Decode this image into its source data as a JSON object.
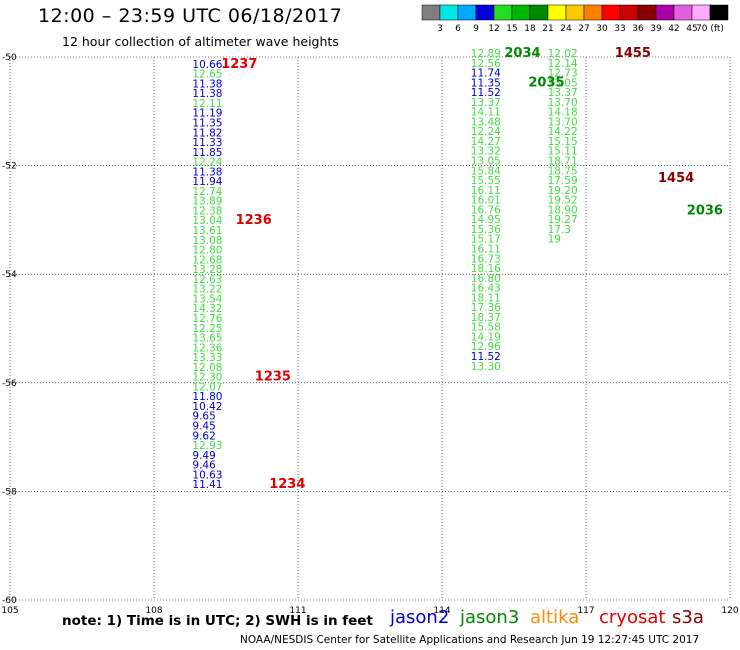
{
  "header": {
    "title": "12:00 – 23:59 UTC 06/18/2017",
    "subtitle": "12 hour collection of altimeter wave heights"
  },
  "colorbar": {
    "colors": [
      "#7f7f7f",
      "#00e6e6",
      "#00a8ff",
      "#0000dd",
      "#22dd22",
      "#00b800",
      "#008800",
      "#ffff00",
      "#ffc800",
      "#ff8000",
      "#ff0000",
      "#cc0000",
      "#880000",
      "#aa00aa",
      "#e060e0",
      "#ffaaff",
      "#000000"
    ],
    "labels": [
      "3",
      "6",
      "9",
      "12",
      "15",
      "18",
      "21",
      "24",
      "27",
      "30",
      "33",
      "36",
      "39",
      "42",
      "45",
      "70 (ft)"
    ]
  },
  "footer": {
    "note": "note:  1) Time is in UTC;  2) SWH is in feet",
    "satellites": [
      {
        "name": "jason2",
        "color": "#0000cc"
      },
      {
        "name": "jason3",
        "color": "#008800"
      },
      {
        "name": "altika",
        "color": "#ff8c00"
      },
      {
        "name": "cryosat",
        "color": "#dd0000"
      },
      {
        "name": "s3a",
        "color": "#880000"
      }
    ],
    "credit": "NOAA/NESDIS Center for Satellite Applications and Research    Jun 19 12:27:45 UTC 2017"
  },
  "chart_data": {
    "type": "scatter",
    "xlim": [
      105,
      120
    ],
    "ylim": [
      -60,
      -50
    ],
    "x_ticks": [
      105,
      108,
      111,
      114,
      117,
      120
    ],
    "y_ticks": [
      -50,
      -52,
      -54,
      -56,
      -58,
      -60
    ],
    "grid": true,
    "series": [
      {
        "name": "track_left",
        "points": [
          {
            "x": 108.8,
            "y": -50.2,
            "v": "10.66",
            "c": "#0000cc"
          },
          {
            "x": 108.8,
            "y": -50.38,
            "v": "12.65",
            "c": "#44dd44"
          },
          {
            "x": 108.8,
            "y": -50.56,
            "v": "11.38",
            "c": "#0000cc"
          },
          {
            "x": 108.8,
            "y": -50.74,
            "v": "11.38",
            "c": "#0000cc"
          },
          {
            "x": 108.8,
            "y": -50.92,
            "v": "12.11",
            "c": "#44dd44"
          },
          {
            "x": 108.8,
            "y": -51.1,
            "v": "11.19",
            "c": "#0000cc"
          },
          {
            "x": 108.8,
            "y": -51.28,
            "v": "11.35",
            "c": "#0000cc"
          },
          {
            "x": 108.8,
            "y": -51.46,
            "v": "11.82",
            "c": "#0000cc"
          },
          {
            "x": 108.8,
            "y": -51.64,
            "v": "11.33",
            "c": "#0000cc"
          },
          {
            "x": 108.8,
            "y": -51.82,
            "v": "11.85",
            "c": "#0000cc"
          },
          {
            "x": 108.8,
            "y": -52.0,
            "v": "12.24",
            "c": "#44dd44"
          },
          {
            "x": 108.8,
            "y": -52.18,
            "v": "11.38",
            "c": "#0000cc"
          },
          {
            "x": 108.8,
            "y": -52.36,
            "v": "11.94",
            "c": "#0000cc"
          },
          {
            "x": 108.8,
            "y": -52.54,
            "v": "12.74",
            "c": "#44dd44"
          },
          {
            "x": 108.8,
            "y": -52.72,
            "v": "13.89",
            "c": "#44dd44"
          },
          {
            "x": 108.8,
            "y": -52.9,
            "v": "12.38",
            "c": "#44dd44"
          },
          {
            "x": 108.8,
            "y": -53.08,
            "v": "13.04",
            "c": "#44dd44"
          },
          {
            "x": 108.8,
            "y": -53.26,
            "v": "13.61",
            "c": "#44dd44"
          },
          {
            "x": 108.8,
            "y": -53.44,
            "v": "13.08",
            "c": "#44dd44"
          },
          {
            "x": 108.8,
            "y": -53.62,
            "v": "12.80",
            "c": "#44dd44"
          },
          {
            "x": 108.8,
            "y": -53.8,
            "v": "12.68",
            "c": "#44dd44"
          },
          {
            "x": 108.8,
            "y": -53.98,
            "v": "13.28",
            "c": "#44dd44"
          },
          {
            "x": 108.8,
            "y": -54.16,
            "v": "12.63",
            "c": "#44dd44"
          },
          {
            "x": 108.8,
            "y": -54.34,
            "v": "13.22",
            "c": "#44dd44"
          },
          {
            "x": 108.8,
            "y": -54.52,
            "v": "13.54",
            "c": "#44dd44"
          },
          {
            "x": 108.8,
            "y": -54.7,
            "v": "14.32",
            "c": "#44dd44"
          },
          {
            "x": 108.8,
            "y": -54.88,
            "v": "12.76",
            "c": "#44dd44"
          },
          {
            "x": 108.8,
            "y": -55.06,
            "v": "12.25",
            "c": "#44dd44"
          },
          {
            "x": 108.8,
            "y": -55.24,
            "v": "13.65",
            "c": "#44dd44"
          },
          {
            "x": 108.8,
            "y": -55.42,
            "v": "12.36",
            "c": "#44dd44"
          },
          {
            "x": 108.8,
            "y": -55.6,
            "v": "13.33",
            "c": "#44dd44"
          },
          {
            "x": 108.8,
            "y": -55.78,
            "v": "12.08",
            "c": "#44dd44"
          },
          {
            "x": 108.8,
            "y": -55.96,
            "v": "12.30",
            "c": "#44dd44"
          },
          {
            "x": 108.8,
            "y": -56.14,
            "v": "12.07",
            "c": "#44dd44"
          },
          {
            "x": 108.8,
            "y": -56.32,
            "v": "11.80",
            "c": "#0000cc"
          },
          {
            "x": 108.8,
            "y": -56.5,
            "v": "10.42",
            "c": "#0000cc"
          },
          {
            "x": 108.8,
            "y": -56.68,
            "v": "9.65",
            "c": "#0000cc"
          },
          {
            "x": 108.8,
            "y": -56.86,
            "v": "9.45",
            "c": "#0000cc"
          },
          {
            "x": 108.8,
            "y": -57.04,
            "v": "9.62",
            "c": "#0000cc"
          },
          {
            "x": 108.8,
            "y": -57.22,
            "v": "12.93",
            "c": "#44dd44"
          },
          {
            "x": 108.8,
            "y": -57.4,
            "v": "9.49",
            "c": "#0000cc"
          },
          {
            "x": 108.8,
            "y": -57.58,
            "v": "9.46",
            "c": "#0000cc"
          },
          {
            "x": 108.8,
            "y": -57.76,
            "v": "10.63",
            "c": "#0000cc"
          },
          {
            "x": 108.8,
            "y": -57.94,
            "v": "11.41",
            "c": "#0000cc"
          }
        ]
      },
      {
        "name": "track_right_a",
        "points": [
          {
            "x": 114.6,
            "y": -50.0,
            "v": "12.89",
            "c": "#44dd44"
          },
          {
            "x": 114.6,
            "y": -50.18,
            "v": "12.56",
            "c": "#44dd44"
          },
          {
            "x": 114.6,
            "y": -50.36,
            "v": "11.74",
            "c": "#0000cc"
          },
          {
            "x": 114.6,
            "y": -50.54,
            "v": "11.35",
            "c": "#0000cc"
          },
          {
            "x": 114.6,
            "y": -50.72,
            "v": "11.52",
            "c": "#0000cc"
          },
          {
            "x": 114.6,
            "y": -50.9,
            "v": "13.37",
            "c": "#44dd44"
          },
          {
            "x": 114.6,
            "y": -51.08,
            "v": "14.11",
            "c": "#44dd44"
          },
          {
            "x": 114.6,
            "y": -51.26,
            "v": "13.48",
            "c": "#44dd44"
          },
          {
            "x": 114.6,
            "y": -51.44,
            "v": "12.24",
            "c": "#44dd44"
          },
          {
            "x": 114.6,
            "y": -51.62,
            "v": "14.27",
            "c": "#44dd44"
          },
          {
            "x": 114.6,
            "y": -51.8,
            "v": "13.32",
            "c": "#44dd44"
          },
          {
            "x": 114.6,
            "y": -51.98,
            "v": "13.05",
            "c": "#44dd44"
          },
          {
            "x": 114.6,
            "y": -52.16,
            "v": "15.84",
            "c": "#44dd44"
          },
          {
            "x": 114.6,
            "y": -52.34,
            "v": "15.55",
            "c": "#44dd44"
          },
          {
            "x": 114.6,
            "y": -52.52,
            "v": "16.11",
            "c": "#44dd44"
          },
          {
            "x": 114.6,
            "y": -52.7,
            "v": "16.01",
            "c": "#44dd44"
          },
          {
            "x": 114.6,
            "y": -52.88,
            "v": "16.76",
            "c": "#44dd44"
          },
          {
            "x": 114.6,
            "y": -53.06,
            "v": "14.95",
            "c": "#44dd44"
          },
          {
            "x": 114.6,
            "y": -53.24,
            "v": "15.36",
            "c": "#44dd44"
          },
          {
            "x": 114.6,
            "y": -53.42,
            "v": "15.17",
            "c": "#44dd44"
          },
          {
            "x": 114.6,
            "y": -53.6,
            "v": "16.11",
            "c": "#44dd44"
          },
          {
            "x": 114.6,
            "y": -53.78,
            "v": "16.73",
            "c": "#44dd44"
          },
          {
            "x": 114.6,
            "y": -53.96,
            "v": "18.16",
            "c": "#44dd44"
          },
          {
            "x": 114.6,
            "y": -54.14,
            "v": "16.80",
            "c": "#44dd44"
          },
          {
            "x": 114.6,
            "y": -54.32,
            "v": "16.43",
            "c": "#44dd44"
          },
          {
            "x": 114.6,
            "y": -54.5,
            "v": "18.11",
            "c": "#44dd44"
          },
          {
            "x": 114.6,
            "y": -54.68,
            "v": "17.36",
            "c": "#44dd44"
          },
          {
            "x": 114.6,
            "y": -54.86,
            "v": "18.37",
            "c": "#44dd44"
          },
          {
            "x": 114.6,
            "y": -55.04,
            "v": "15.58",
            "c": "#44dd44"
          },
          {
            "x": 114.6,
            "y": -55.22,
            "v": "14.19",
            "c": "#44dd44"
          },
          {
            "x": 114.6,
            "y": -55.4,
            "v": "12.96",
            "c": "#44dd44"
          },
          {
            "x": 114.6,
            "y": -55.58,
            "v": "11.52",
            "c": "#0000cc"
          },
          {
            "x": 114.6,
            "y": -55.76,
            "v": "13.30",
            "c": "#44dd44"
          }
        ]
      },
      {
        "name": "track_right_b",
        "points": [
          {
            "x": 116.2,
            "y": -50.0,
            "v": "12.02",
            "c": "#44dd44"
          },
          {
            "x": 116.2,
            "y": -50.18,
            "v": "12.14",
            "c": "#44dd44"
          },
          {
            "x": 116.2,
            "y": -50.36,
            "v": "12.73",
            "c": "#44dd44"
          },
          {
            "x": 116.2,
            "y": -50.54,
            "v": "13.05",
            "c": "#44dd44"
          },
          {
            "x": 116.2,
            "y": -50.72,
            "v": "13.37",
            "c": "#44dd44"
          },
          {
            "x": 116.2,
            "y": -50.9,
            "v": "13.70",
            "c": "#44dd44"
          },
          {
            "x": 116.2,
            "y": -51.08,
            "v": "14.18",
            "c": "#44dd44"
          },
          {
            "x": 116.2,
            "y": -51.26,
            "v": "13.70",
            "c": "#44dd44"
          },
          {
            "x": 116.2,
            "y": -51.44,
            "v": "14.22",
            "c": "#44dd44"
          },
          {
            "x": 116.2,
            "y": -51.62,
            "v": "15.15",
            "c": "#44dd44"
          },
          {
            "x": 116.2,
            "y": -51.8,
            "v": "15.11",
            "c": "#44dd44"
          },
          {
            "x": 116.2,
            "y": -51.98,
            "v": "18.71",
            "c": "#44dd44"
          },
          {
            "x": 116.2,
            "y": -52.16,
            "v": "18.75",
            "c": "#44dd44"
          },
          {
            "x": 116.2,
            "y": -52.34,
            "v": "17.59",
            "c": "#44dd44"
          },
          {
            "x": 116.2,
            "y": -52.52,
            "v": "19.20",
            "c": "#44dd44"
          },
          {
            "x": 116.2,
            "y": -52.7,
            "v": "19.52",
            "c": "#44dd44"
          },
          {
            "x": 116.2,
            "y": -52.88,
            "v": "18.90",
            "c": "#44dd44"
          },
          {
            "x": 116.2,
            "y": -53.06,
            "v": "19.27",
            "c": "#44dd44"
          },
          {
            "x": 116.2,
            "y": -53.24,
            "v": "17.3",
            "c": "#44dd44"
          },
          {
            "x": 116.2,
            "y": -53.42,
            "v": "19",
            "c": "#44dd44"
          }
        ]
      },
      {
        "name": "pass_labels",
        "points": [
          {
            "x": 109.4,
            "y": -50.2,
            "v": "1237",
            "c": "#dd0000"
          },
          {
            "x": 109.7,
            "y": -53.08,
            "v": "1236",
            "c": "#dd0000"
          },
          {
            "x": 110.1,
            "y": -55.96,
            "v": "1235",
            "c": "#dd0000"
          },
          {
            "x": 110.4,
            "y": -57.94,
            "v": "1234",
            "c": "#dd0000"
          },
          {
            "x": 115.3,
            "y": -50.0,
            "v": "2034",
            "c": "#008800"
          },
          {
            "x": 115.8,
            "y": -50.54,
            "v": "2035",
            "c": "#008800"
          },
          {
            "x": 117.6,
            "y": -50.0,
            "v": "1455",
            "c": "#880000"
          },
          {
            "x": 118.5,
            "y": -52.3,
            "v": "1454",
            "c": "#880000"
          },
          {
            "x": 119.1,
            "y": -52.9,
            "v": "2036",
            "c": "#008800"
          }
        ]
      }
    ]
  }
}
